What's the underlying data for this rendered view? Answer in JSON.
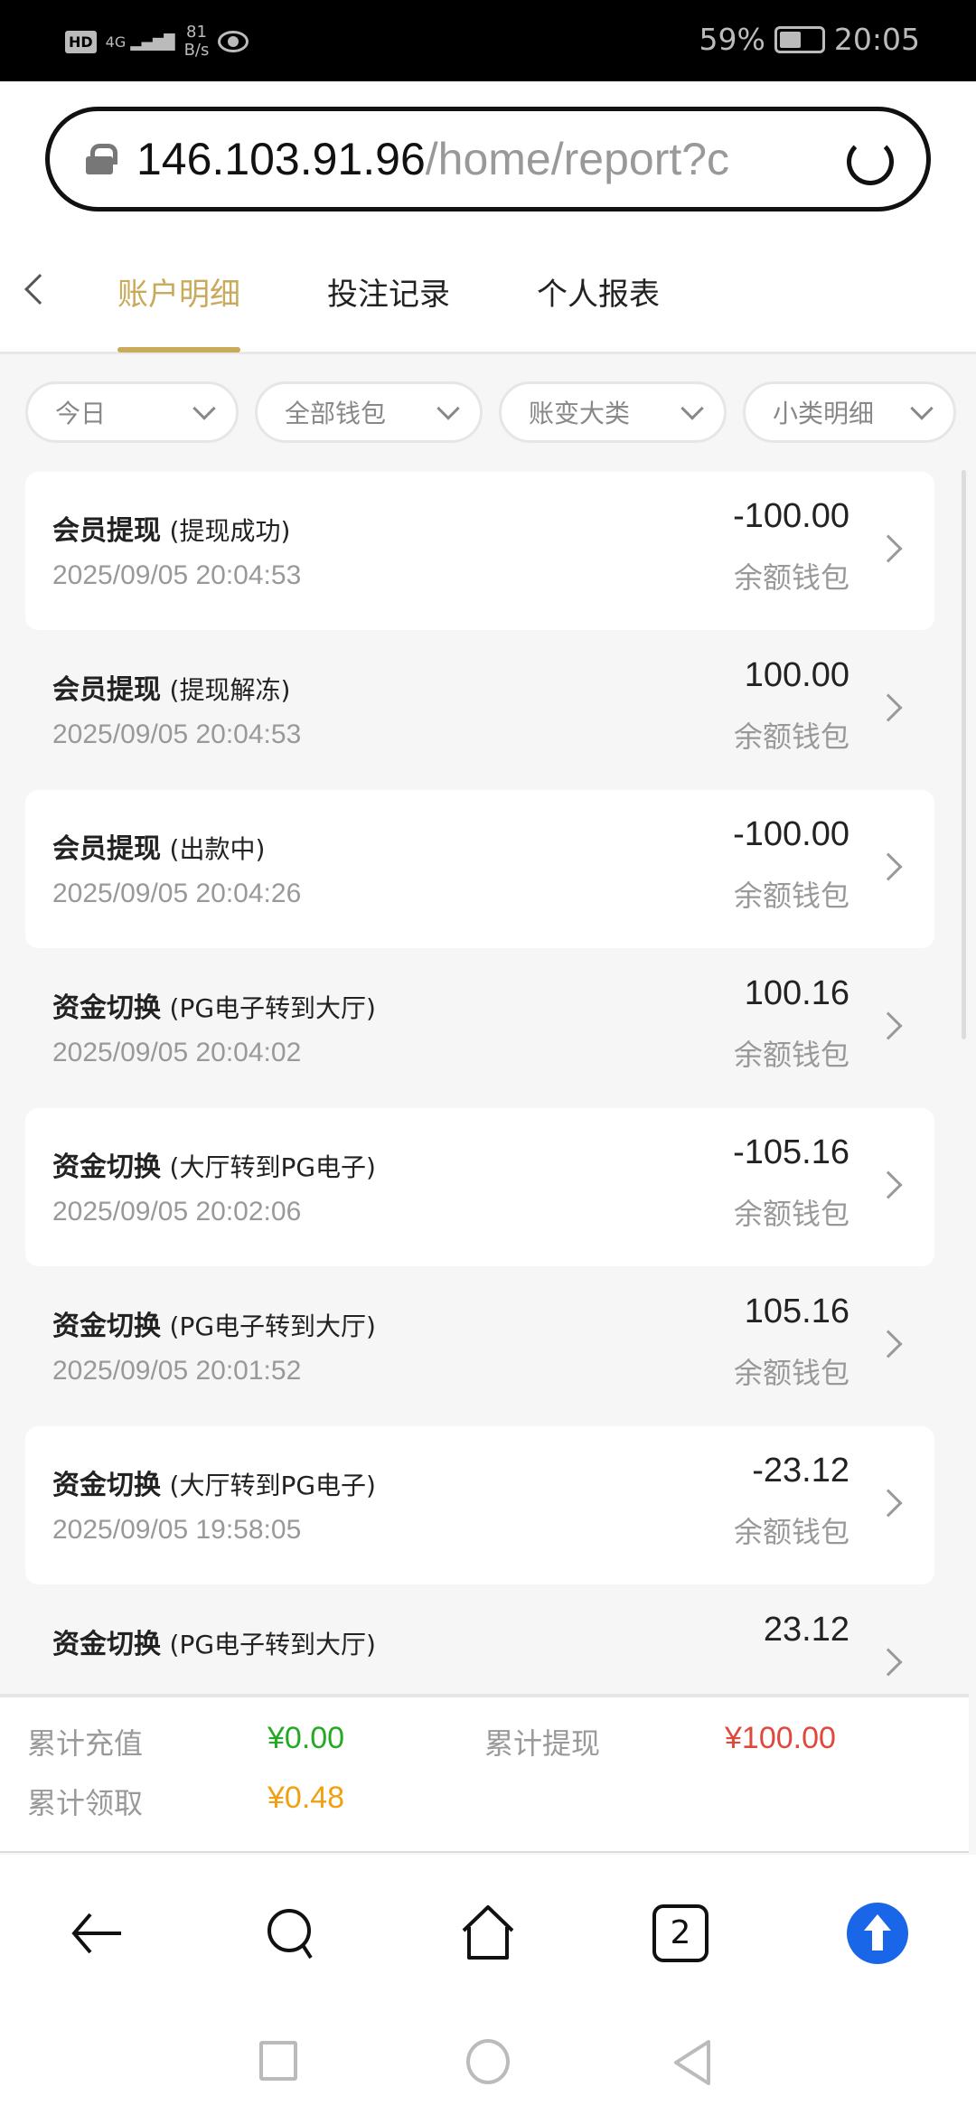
{
  "status_bar": {
    "hd": "HD",
    "network": "4G",
    "speed_value": "81",
    "speed_unit": "B/s",
    "battery": "59%",
    "battery_level": 59,
    "time": "20:05"
  },
  "browser": {
    "url_host": "146.103.91.96",
    "url_path": "/home/report?c"
  },
  "tabs": [
    {
      "label": "账户明细",
      "active": true
    },
    {
      "label": "投注记录",
      "active": false
    },
    {
      "label": "个人报表",
      "active": false
    }
  ],
  "filters": [
    {
      "label": "今日"
    },
    {
      "label": "全部钱包"
    },
    {
      "label": "账变大类"
    },
    {
      "label": "小类明细"
    }
  ],
  "records": [
    {
      "title": "会员提现",
      "detail": "(提现成功)",
      "time": "2025/09/05 20:04:53",
      "amount": "-100.00",
      "wallet": "余额钱包"
    },
    {
      "title": "会员提现",
      "detail": "(提现解冻)",
      "time": "2025/09/05 20:04:53",
      "amount": "100.00",
      "wallet": "余额钱包"
    },
    {
      "title": "会员提现",
      "detail": "(出款中)",
      "time": "2025/09/05 20:04:26",
      "amount": "-100.00",
      "wallet": "余额钱包"
    },
    {
      "title": "资金切换",
      "detail": "(PG电子转到大厅)",
      "time": "2025/09/05 20:04:02",
      "amount": "100.16",
      "wallet": "余额钱包"
    },
    {
      "title": "资金切换",
      "detail": "(大厅转到PG电子)",
      "time": "2025/09/05 20:02:06",
      "amount": "-105.16",
      "wallet": "余额钱包"
    },
    {
      "title": "资金切换",
      "detail": "(PG电子转到大厅)",
      "time": "2025/09/05 20:01:52",
      "amount": "105.16",
      "wallet": "余额钱包"
    },
    {
      "title": "资金切换",
      "detail": "(大厅转到PG电子)",
      "time": "2025/09/05 19:58:05",
      "amount": "-23.12",
      "wallet": "余额钱包"
    },
    {
      "title": "资金切换",
      "detail": "(PG电子转到大厅)",
      "time": "",
      "amount": "23.12",
      "wallet": ""
    }
  ],
  "summary": {
    "deposit_label": "累计充值",
    "deposit_value": "¥0.00",
    "deposit_color": "#22aa22",
    "withdraw_label": "累计提现",
    "withdraw_value": "¥100.00",
    "withdraw_color": "#e0483c",
    "claim_label": "累计领取",
    "claim_value": "¥0.48",
    "claim_color": "#f0a010"
  },
  "bottom_nav": {
    "tab_count": "2",
    "accent": "#1a66e8"
  }
}
